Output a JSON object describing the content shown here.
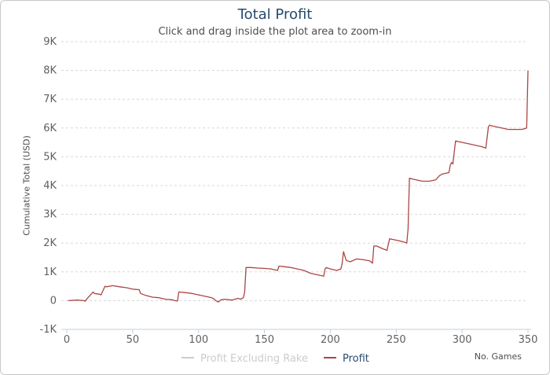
{
  "chart_data": {
    "type": "line",
    "title": "Total Profit",
    "subtitle": "Click and drag inside the plot area to zoom-in",
    "xlabel": "No. Games",
    "ylabel": "Cumulative Total (USD)",
    "xlim": [
      0,
      350
    ],
    "ylim": [
      -1000,
      9000
    ],
    "x_ticks": [
      0,
      50,
      100,
      150,
      200,
      250,
      300,
      350
    ],
    "y_ticks": [
      -1000,
      0,
      1000,
      2000,
      3000,
      4000,
      5000,
      6000,
      7000,
      8000,
      9000
    ],
    "y_tick_labels": [
      "-1K",
      "0",
      "1K",
      "2K",
      "3K",
      "4K",
      "5K",
      "6K",
      "7K",
      "8K",
      "9K"
    ],
    "grid": "horizontal dashed",
    "legend_position": "bottom-center",
    "series": [
      {
        "name": "Profit Excluding Rake",
        "color": "#cccccc",
        "x": [],
        "y": []
      },
      {
        "name": "Profit",
        "color": "#aa4643",
        "x": [
          1,
          8,
          13,
          14,
          15,
          20,
          21,
          25,
          26,
          29,
          30,
          35,
          40,
          45,
          50,
          55,
          56,
          60,
          65,
          70,
          75,
          80,
          82,
          84,
          85,
          90,
          95,
          100,
          105,
          110,
          112,
          113,
          115,
          117,
          120,
          125,
          130,
          132,
          134,
          135,
          136,
          140,
          145,
          150,
          155,
          160,
          161,
          165,
          170,
          175,
          180,
          185,
          190,
          195,
          196,
          197,
          200,
          205,
          208,
          209,
          210,
          212,
          215,
          220,
          225,
          230,
          232,
          233,
          235,
          240,
          243,
          245,
          250,
          255,
          258,
          259,
          260,
          265,
          270,
          275,
          280,
          283,
          285,
          290,
          291,
          292,
          293,
          295,
          300,
          305,
          310,
          315,
          318,
          320,
          321,
          322,
          325,
          330,
          335,
          340,
          345,
          348,
          349,
          350
        ],
        "y": [
          0,
          20,
          0,
          -20,
          50,
          300,
          250,
          220,
          200,
          500,
          480,
          520,
          480,
          450,
          400,
          380,
          250,
          180,
          120,
          100,
          50,
          30,
          0,
          -10,
          300,
          280,
          250,
          200,
          150,
          100,
          50,
          0,
          -50,
          30,
          50,
          20,
          80,
          50,
          100,
          300,
          1150,
          1150,
          1130,
          1120,
          1100,
          1050,
          1200,
          1180,
          1150,
          1100,
          1050,
          950,
          900,
          850,
          1100,
          1150,
          1100,
          1050,
          1100,
          1300,
          1700,
          1400,
          1350,
          1450,
          1420,
          1380,
          1300,
          1900,
          1900,
          1800,
          1750,
          2150,
          2100,
          2050,
          2000,
          2500,
          4250,
          4200,
          4150,
          4150,
          4200,
          4350,
          4400,
          4450,
          4700,
          4800,
          4750,
          5550,
          5500,
          5450,
          5400,
          5350,
          5300,
          6050,
          6100,
          6080,
          6050,
          6000,
          5950,
          5950,
          5950,
          5980,
          6000,
          8000
        ]
      }
    ]
  }
}
